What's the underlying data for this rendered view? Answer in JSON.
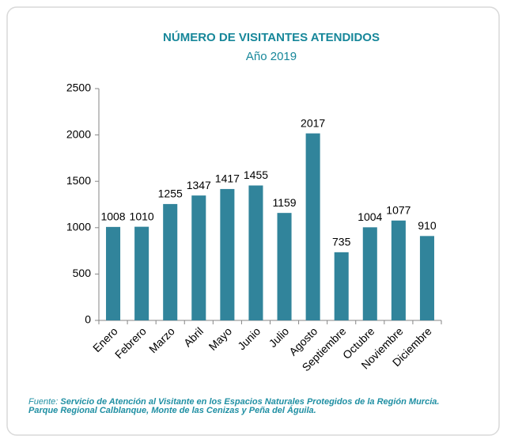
{
  "chart_data": {
    "type": "bar",
    "title": "NÚMERO DE VISITANTES ATENDIDOS",
    "subtitle": "Año 2019",
    "categories": [
      "Enero",
      "Febrero",
      "Marzo",
      "Abril",
      "Mayo",
      "Junio",
      "Julio",
      "Agosto",
      "Septiembre",
      "Octubre",
      "Noviembre",
      "Diciembre"
    ],
    "values": [
      1008,
      1010,
      1255,
      1347,
      1417,
      1455,
      1159,
      2017,
      735,
      1004,
      1077,
      910
    ],
    "color": "#31849b",
    "ylim": [
      0,
      2500
    ],
    "yticks": [
      0,
      500,
      1000,
      1500,
      2000,
      2500
    ],
    "grid": false,
    "source_prefix": "Fuente:",
    "source": "Servicio de Atención al Visitante en los Espacios Naturales Protegidos de la Región Murcia.",
    "source_note": "Parque Regional Calblanque, Monte de las Cenizas y Peña del Águila."
  }
}
